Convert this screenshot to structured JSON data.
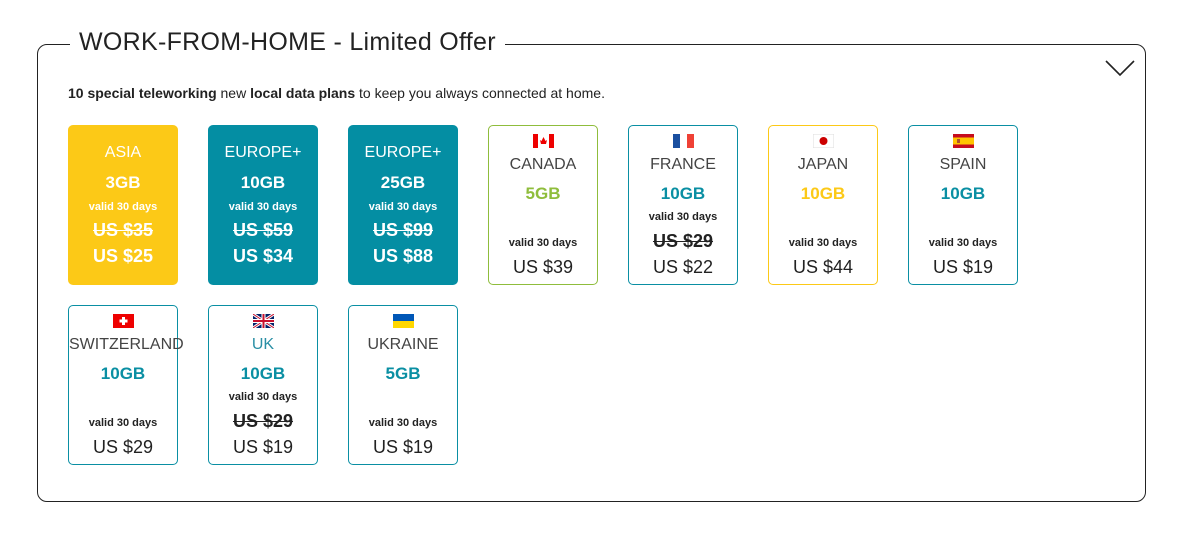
{
  "title": "WORK-FROM-HOME - Limited Offer",
  "intro": {
    "b1": "10 special teleworking",
    "t1": " new ",
    "b2": "local data plans",
    "t2": " to keep you always connected at home."
  },
  "colors": {
    "teal": "#0a8fa3",
    "yellow": "#fcc917",
    "green": "#8fbd3c"
  },
  "plans": [
    {
      "name": "ASIA",
      "data": "3GB",
      "valid": "valid 30 days",
      "old_price": "US $35",
      "price": "US $25",
      "style": "filled",
      "color": "#fcc917"
    },
    {
      "name": "EUROPE+",
      "data": "10GB",
      "valid": "valid 30 days",
      "old_price": "US $59",
      "price": "US $34",
      "style": "filled",
      "color": "#048ea3"
    },
    {
      "name": "EUROPE+",
      "data": "25GB",
      "valid": "valid 30 days",
      "old_price": "US $99",
      "price": "US $88",
      "style": "filled",
      "color": "#048ea3"
    },
    {
      "name": "CANADA",
      "data": "5GB",
      "valid": "valid 30 days",
      "price": "US $39",
      "flag": "canada-flag",
      "color": "#8fbd3c"
    },
    {
      "name": "FRANCE",
      "data": "10GB",
      "valid": "valid 30 days",
      "old_price": "US $29",
      "price": "US $22",
      "flag": "france-flag",
      "color": "#0a8fa3"
    },
    {
      "name": "JAPAN",
      "data": "10GB",
      "valid": "valid 30 days",
      "price": "US $44",
      "flag": "japan-flag",
      "color": "#fcc917"
    },
    {
      "name": "SPAIN",
      "data": "10GB",
      "valid": "valid 30 days",
      "price": "US $19",
      "flag": "spain-flag",
      "color": "#0a8fa3"
    },
    {
      "name": "SWITZERLAND",
      "data": "10GB",
      "valid": "valid 30 days",
      "price": "US $29",
      "flag": "switzerland-flag",
      "color": "#0a8fa3"
    },
    {
      "name": "UK",
      "data": "10GB",
      "valid": "valid 30 days",
      "old_price": "US $29",
      "price": "US $19",
      "flag": "uk-flag",
      "color": "#0a8fa3"
    },
    {
      "name": "UKRAINE",
      "data": "5GB",
      "valid": "valid 30 days",
      "price": "US $19",
      "flag": "ukraine-flag",
      "color": "#0a8fa3"
    }
  ]
}
